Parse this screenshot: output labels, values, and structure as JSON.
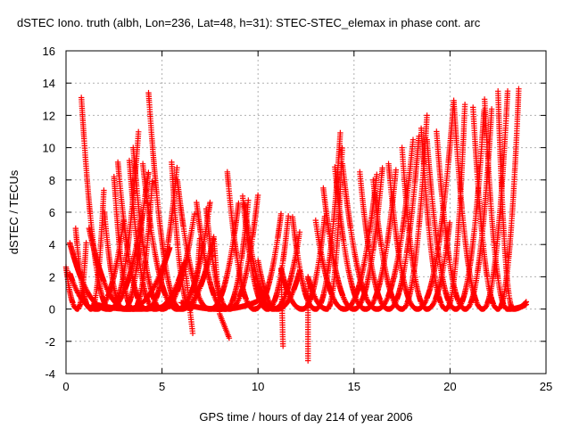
{
  "chart_data": {
    "type": "scatter",
    "title": "dSTEC Iono. truth (albh, Lon=236, Lat=48, h=31): STEC-STEC_elemax in phase cont. arc",
    "xlabel": "GPS time / hours of day 214 of year 2006",
    "ylabel": "dSTEC  / TECUs",
    "xlim": [
      0,
      25
    ],
    "ylim": [
      -4,
      16
    ],
    "x_ticks": [
      "0",
      "5",
      "10",
      "15",
      "20",
      "25"
    ],
    "y_ticks": [
      "-4",
      "-2",
      "0",
      "2",
      "4",
      "6",
      "8",
      "10",
      "12",
      "14",
      "16"
    ],
    "grid": true,
    "marker": "+",
    "series_color": "#ff0000",
    "arcs": [
      {
        "start": 0.0,
        "apex": 0.6,
        "end": 1.05,
        "left_value": 2.6,
        "right_value": 4.1,
        "pre": [],
        "post": []
      },
      {
        "start": 0.2,
        "apex": 2.2,
        "end": 4.3,
        "left_value": 4.1,
        "right_value": 8.5,
        "pre": [],
        "post": []
      },
      {
        "start": 0.2,
        "apex": 1.6,
        "end": 3.0,
        "left_value": 2.2,
        "right_value": 5.5,
        "pre": [],
        "post": []
      },
      {
        "start": 0.5,
        "apex": 1.3,
        "end": 2.0,
        "left_value": 5.0,
        "right_value": 8.1,
        "pre": [],
        "post": []
      },
      {
        "start": 0.8,
        "apex": 2.3,
        "end": 3.8,
        "left_value": 13.1,
        "right_value": 11.4,
        "pre": [],
        "post": []
      },
      {
        "start": 1.2,
        "apex": 3.2,
        "end": 5.4,
        "left_value": 5.0,
        "right_value": 3.8,
        "pre": [],
        "post": []
      },
      {
        "start": 2.0,
        "apex": 3.0,
        "end": 4.0,
        "left_value": 6.0,
        "right_value": 6.0,
        "pre": [],
        "post": []
      },
      {
        "start": 2.5,
        "apex": 3.5,
        "end": 4.5,
        "left_value": 8.2,
        "right_value": 8.0,
        "pre": [],
        "post": []
      },
      {
        "start": 2.7,
        "apex": 4.2,
        "end": 5.8,
        "left_value": 9.1,
        "right_value": 9.0,
        "pre": [],
        "post": []
      },
      {
        "start": 3.3,
        "apex": 4.6,
        "end": 6.2,
        "left_value": 9.2,
        "right_value": 3.0,
        "pre": [],
        "post": [
          [
            6.6,
            -1.5
          ]
        ]
      },
      {
        "start": 3.5,
        "apex": 5.0,
        "end": 6.7,
        "left_value": 10.0,
        "right_value": 6.0,
        "pre": [],
        "post": []
      },
      {
        "start": 4.0,
        "apex": 5.8,
        "end": 7.5,
        "left_value": 9.0,
        "right_value": 6.6,
        "pre": [],
        "post": []
      },
      {
        "start": 4.3,
        "apex": 6.0,
        "end": 7.7,
        "left_value": 13.4,
        "right_value": 4.5,
        "pre": [],
        "post": [
          [
            8.0,
            -0.3
          ],
          [
            8.5,
            -1.8
          ]
        ]
      },
      {
        "start": 5.5,
        "apex": 6.5,
        "end": 7.0,
        "left_value": 9.1,
        "right_value": 5.0,
        "pre": [],
        "post": []
      },
      {
        "start": 5.8,
        "apex": 7.5,
        "end": 9.0,
        "left_value": 8.0,
        "right_value": 6.7,
        "pre": [],
        "post": []
      },
      {
        "start": 6.8,
        "apex": 8.3,
        "end": 9.5,
        "left_value": 6.6,
        "right_value": 6.8,
        "pre": [],
        "post": []
      },
      {
        "start": 7.3,
        "apex": 8.5,
        "end": 10.0,
        "left_value": 6.2,
        "right_value": 7.1,
        "pre": [],
        "post": []
      },
      {
        "start": 8.4,
        "apex": 9.8,
        "end": 11.2,
        "left_value": 8.5,
        "right_value": 5.9,
        "pre": [],
        "post": []
      },
      {
        "start": 9.2,
        "apex": 10.5,
        "end": 11.6,
        "left_value": 7.0,
        "right_value": 6.0,
        "pre": [],
        "post": []
      },
      {
        "start": 9.3,
        "apex": 10.8,
        "end": 12.2,
        "left_value": 6.5,
        "right_value": 5.0,
        "pre": [],
        "post": []
      },
      {
        "start": 10.0,
        "apex": 11.0,
        "end": 12.2,
        "left_value": 3.0,
        "right_value": 2.5,
        "pre": [],
        "post": []
      },
      {
        "start": 11.2,
        "apex": 12.3,
        "end": 13.5,
        "left_value": 2.5,
        "right_value": 6.0,
        "pre": [
          [
            11.3,
            -2.3
          ]
        ],
        "post": []
      },
      {
        "start": 11.8,
        "apex": 13.0,
        "end": 14.3,
        "left_value": 5.7,
        "right_value": 11.2,
        "pre": [],
        "post": []
      },
      {
        "start": 12.6,
        "apex": 13.6,
        "end": 14.4,
        "left_value": 2.0,
        "right_value": 10.4,
        "pre": [
          [
            12.6,
            -3.2
          ]
        ],
        "post": []
      },
      {
        "start": 13.0,
        "apex": 14.5,
        "end": 16.2,
        "left_value": 5.5,
        "right_value": 8.5,
        "pre": [],
        "post": []
      },
      {
        "start": 13.4,
        "apex": 15.0,
        "end": 16.5,
        "left_value": 7.5,
        "right_value": 9.0,
        "pre": [],
        "post": []
      },
      {
        "start": 14.0,
        "apex": 15.6,
        "end": 17.2,
        "left_value": 8.8,
        "right_value": 8.8,
        "pre": [],
        "post": []
      },
      {
        "start": 14.4,
        "apex": 16.2,
        "end": 18.1,
        "left_value": 9.0,
        "right_value": 10.8,
        "pre": [],
        "post": []
      },
      {
        "start": 15.3,
        "apex": 16.8,
        "end": 18.4,
        "left_value": 8.5,
        "right_value": 11.0,
        "pre": [],
        "post": []
      },
      {
        "start": 16.0,
        "apex": 17.5,
        "end": 18.8,
        "left_value": 8.0,
        "right_value": 12.0,
        "pre": [],
        "post": []
      },
      {
        "start": 16.8,
        "apex": 18.3,
        "end": 20.2,
        "left_value": 9.0,
        "right_value": 13.0,
        "pre": [],
        "post": []
      },
      {
        "start": 17.5,
        "apex": 18.8,
        "end": 20.0,
        "left_value": 10.0,
        "right_value": 5.5,
        "pre": [],
        "post": []
      },
      {
        "start": 18.5,
        "apex": 19.8,
        "end": 20.8,
        "left_value": 11.2,
        "right_value": 13.4,
        "pre": [],
        "post": []
      },
      {
        "start": 18.8,
        "apex": 20.3,
        "end": 21.8,
        "left_value": 10.5,
        "right_value": 12.8,
        "pre": [],
        "post": []
      },
      {
        "start": 19.3,
        "apex": 20.8,
        "end": 22.2,
        "left_value": 11.0,
        "right_value": 13.0,
        "pre": [],
        "post": []
      },
      {
        "start": 20.2,
        "apex": 21.7,
        "end": 23.0,
        "left_value": 12.8,
        "right_value": 13.5,
        "pre": [],
        "post": []
      },
      {
        "start": 21.2,
        "apex": 22.5,
        "end": 23.6,
        "left_value": 12.5,
        "right_value": 14.2,
        "pre": [],
        "post": []
      },
      {
        "start": 21.8,
        "apex": 23.0,
        "end": 24.0,
        "left_value": 13.0,
        "right_value": 0.3,
        "pre": [],
        "post": []
      },
      {
        "start": 22.5,
        "apex": 23.3,
        "end": 24.0,
        "left_value": 13.5,
        "right_value": 0.5,
        "pre": [],
        "post": []
      },
      {
        "start": 6.0,
        "apex": 8.0,
        "end": 10.0,
        "left_value": 0.4,
        "right_value": 0.5,
        "pre": [],
        "post": []
      },
      {
        "start": 1.5,
        "apex": 3.5,
        "end": 5.5,
        "left_value": 0.3,
        "right_value": 0.2,
        "pre": [],
        "post": []
      }
    ]
  }
}
